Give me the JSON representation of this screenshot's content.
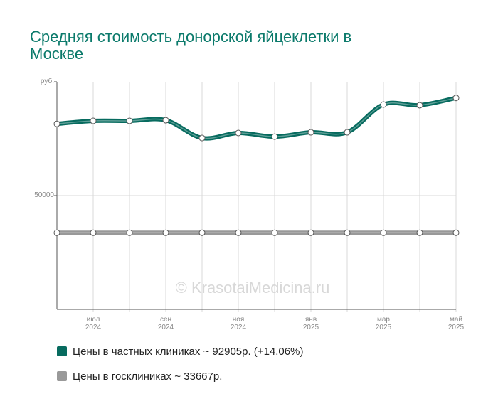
{
  "chart_data": {
    "type": "line",
    "title": "Средняя стоимость донорской яйцеклетки в Москве",
    "categories": [
      null,
      "июл 2024",
      null,
      "сен 2024",
      null,
      "ноя 2024",
      null,
      "янв 2025",
      null,
      "мар 2025",
      null,
      "май 2025"
    ],
    "series": [
      {
        "name": "Цены в частных клиниках ~ 92905р. (+14.06%)",
        "color": "#076b5f",
        "values": [
          81500,
          82800,
          82800,
          83100,
          75300,
          77500,
          75900,
          77800,
          77800,
          90000,
          89700,
          92905
        ]
      },
      {
        "name": "Цены в госклиниках ~ 33667р.",
        "color": "#999999",
        "values": [
          33667,
          33667,
          33667,
          33667,
          33667,
          33667,
          33667,
          33667,
          33667,
          33667,
          33667,
          33667
        ]
      }
    ],
    "ylim": [
      0,
      100000
    ],
    "yticks": [
      {
        "value": 100000,
        "label": "руб."
      },
      50000
    ],
    "grid": true,
    "watermark": "© KrasotaiMedicina.ru"
  }
}
